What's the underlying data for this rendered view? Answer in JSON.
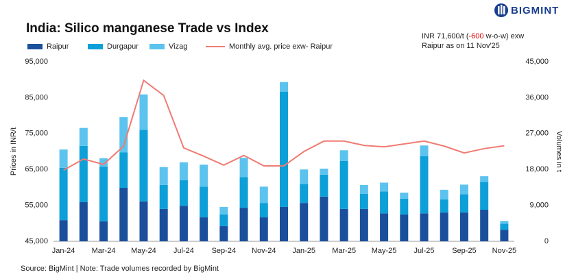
{
  "chart_data": {
    "type": "bar",
    "title": "India: Silico manganese Trade vs Index",
    "logo": "BIGMINT",
    "annotation": {
      "prefix": "INR 71,600/t (",
      "change": "-600",
      "suffix": " w-o-w) exw",
      "line2": "Raipur as on 11 Nov'25",
      "change_color": "#e00000"
    },
    "y_label": "Prices in INR/t",
    "y2_label": "Volumes in t",
    "source": "Source: BigMint | Note: Trade volumes recorded by BigMint",
    "categories": [
      "Jan-24",
      null,
      "Mar-24",
      null,
      "May-24",
      null,
      "Jul-24",
      null,
      "Sep-24",
      null,
      "Nov-24",
      null,
      "Jan-25",
      null,
      "Mar-25",
      null,
      "May-25",
      null,
      "Jul-25",
      null,
      "Sep-25",
      null,
      "Nov-25"
    ],
    "series": [
      {
        "name": "Raipur",
        "type": "bar",
        "axis": "y2",
        "color": "#1a4f9c",
        "values": [
          5300,
          9800,
          5000,
          13400,
          10000,
          8100,
          8900,
          6000,
          3800,
          8400,
          6000,
          8600,
          9600,
          11200,
          8100,
          8100,
          7000,
          6700,
          7000,
          7200,
          7200,
          7900,
          2900
        ]
      },
      {
        "name": "Durgapur",
        "type": "bar",
        "axis": "y2",
        "color": "#0d9fd8",
        "values": [
          13100,
          14100,
          13700,
          8900,
          17900,
          6000,
          6400,
          7700,
          2900,
          7700,
          3600,
          28900,
          4800,
          5500,
          12000,
          3800,
          5500,
          4000,
          14300,
          3300,
          4600,
          7000,
          1500
        ]
      },
      {
        "name": "Vizag",
        "type": "bar",
        "axis": "y2",
        "color": "#5cc3ee",
        "values": [
          4600,
          4500,
          2100,
          8800,
          8900,
          4500,
          4500,
          5500,
          1900,
          4800,
          4100,
          2400,
          3600,
          1500,
          2700,
          2200,
          2200,
          1500,
          2700,
          2400,
          2400,
          1400,
          700
        ]
      },
      {
        "name": "Monthly avg. price exw- Raipur",
        "type": "line",
        "color": "#f07b72",
        "values": [
          64800,
          67900,
          66400,
          71500,
          89800,
          85600,
          71000,
          68700,
          66200,
          68900,
          66000,
          66000,
          70000,
          72900,
          72900,
          71700,
          71300,
          72100,
          72900,
          71500,
          69600,
          70800,
          71600
        ]
      }
    ],
    "ylim": [
      45000,
      95000
    ],
    "yticks": [
      {
        "value": 45000,
        "label": "45,000"
      },
      {
        "value": 55000,
        "label": "55,000"
      },
      {
        "value": 65000,
        "label": "65,000"
      },
      {
        "value": 75000,
        "label": "75,000"
      },
      {
        "value": 85000,
        "label": "85,000"
      },
      {
        "value": 95000,
        "label": "95,000"
      }
    ],
    "y2lim": [
      0,
      45000
    ],
    "y2ticks": [
      0,
      {
        "value": 9000,
        "label": "9,000"
      },
      {
        "value": 18000,
        "label": "18,000"
      },
      {
        "value": 27000,
        "label": "27,000"
      },
      {
        "value": 36000,
        "label": "36,000"
      },
      {
        "value": 45000,
        "label": "45,000"
      }
    ]
  }
}
